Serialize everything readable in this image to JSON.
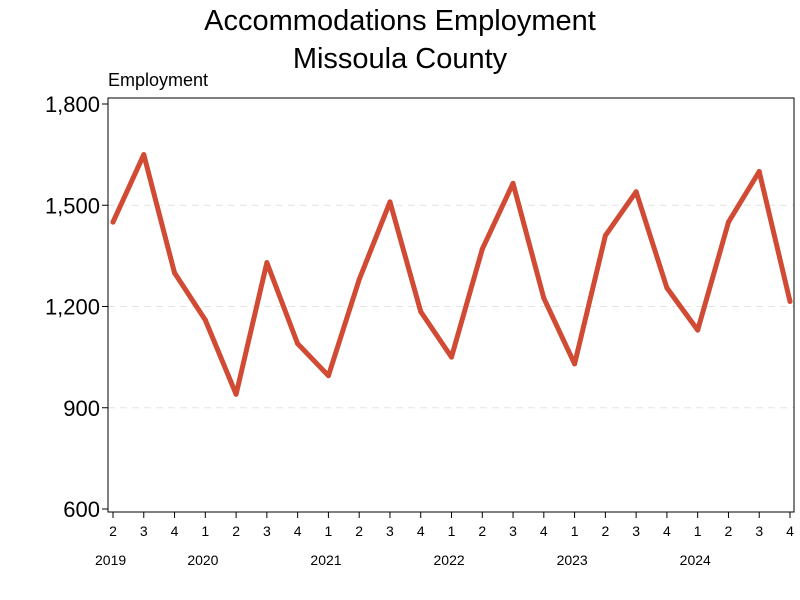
{
  "chart_data": {
    "type": "line",
    "title": "Accommodations Employment",
    "subtitle": "Missoula County",
    "ylabel": "Employment",
    "xlabel": "",
    "ylim": [
      600,
      1800
    ],
    "yticks": [
      600,
      900,
      1200,
      1500,
      1800
    ],
    "ytick_labels": [
      "600",
      "900",
      "1,200",
      "1,500",
      "1,800"
    ],
    "grid": "horizontal dashed",
    "line_color": "#d14a34",
    "quarters": [
      "2",
      "3",
      "4",
      "1",
      "2",
      "3",
      "4",
      "1",
      "2",
      "3",
      "4",
      "1",
      "2",
      "3",
      "4",
      "1",
      "2",
      "3",
      "4",
      "1",
      "2",
      "3",
      "4"
    ],
    "years": [
      {
        "label": "2019",
        "index": 0
      },
      {
        "label": "2020",
        "index": 3
      },
      {
        "label": "2021",
        "index": 7
      },
      {
        "label": "2022",
        "index": 11
      },
      {
        "label": "2023",
        "index": 15
      },
      {
        "label": "2024",
        "index": 19
      }
    ],
    "series": [
      {
        "values": [
          1450,
          1650,
          1300,
          1160,
          940,
          1330,
          1090,
          995,
          1280,
          1510,
          1185,
          1050,
          1370,
          1565,
          1225,
          1030,
          1410,
          1540,
          1255,
          1130,
          1450,
          1600,
          1215
        ]
      }
    ]
  }
}
